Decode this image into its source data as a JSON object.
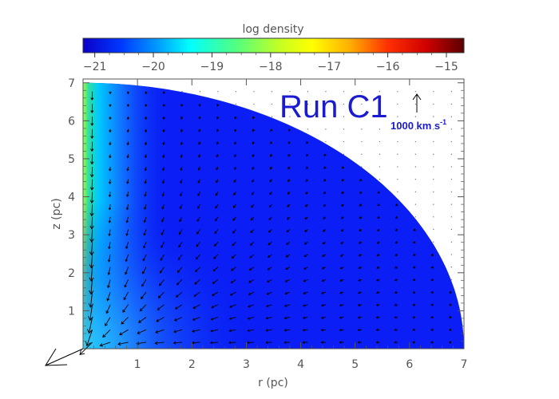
{
  "chart_data": {
    "type": "heatmap",
    "title": "",
    "annotation": "Run C1",
    "xlabel": "r (pc)",
    "ylabel": "z (pc)",
    "xlim": [
      0,
      7
    ],
    "ylim": [
      0,
      7.1
    ],
    "x_ticks": [
      1,
      2,
      3,
      4,
      5,
      6,
      7
    ],
    "y_ticks": [
      1,
      2,
      3,
      4,
      5,
      6,
      7
    ],
    "colorbar": {
      "label": "log density",
      "range": [
        -21.2,
        -14.7
      ],
      "ticks": [
        -21,
        -20,
        -19,
        -18,
        -17,
        -16,
        -15
      ],
      "tick_labels": [
        "−21",
        "−20",
        "−19",
        "−18",
        "−17",
        "−16",
        "−15"
      ],
      "colormap": "rainbow"
    },
    "cloud": {
      "shape": "quarter-circle",
      "radius_pc": 7.0,
      "interior_log_density": -21.1,
      "axis_log_density": -18.5,
      "inside_color": "#0a1ef5",
      "outside_color": "#ffffff"
    },
    "velocity_field": {
      "description": "infall toward origin",
      "scale_arrow_label": "1000 km s",
      "scale_arrow_superscript": "-1",
      "grid_spacing_pc": 0.33
    }
  }
}
